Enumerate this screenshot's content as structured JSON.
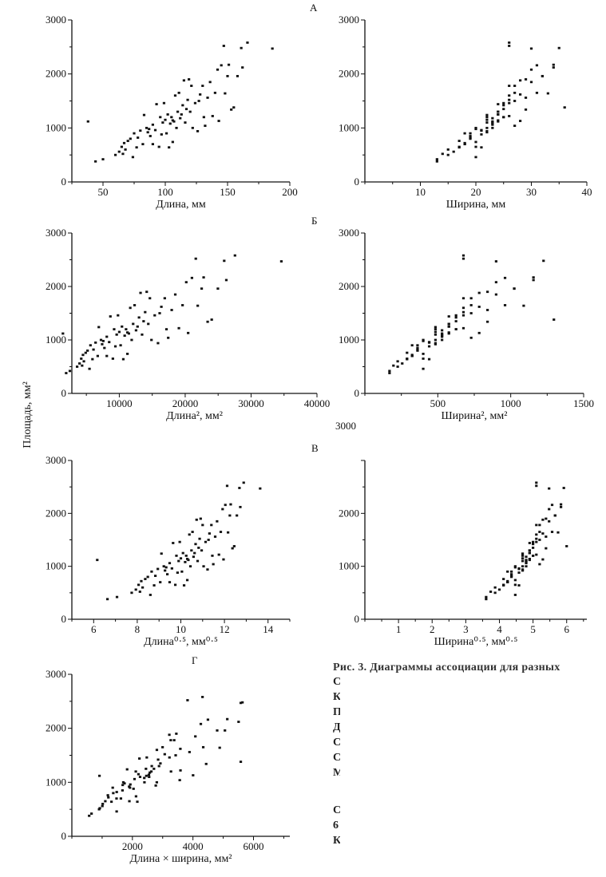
{
  "figure": {
    "ylabel": "Площадь, мм²",
    "caption_first_line": "Рис. 3. Диаграммы ассоциации для разных",
    "caption_fragments": [
      "С",
      "К",
      "П",
      "Д",
      "С",
      "С",
      "М",
      "С",
      "6",
      "К"
    ]
  },
  "specimens_columns": [
    "length_mm",
    "width_mm",
    "area_mm2"
  ],
  "specimens": [
    [
      44,
      13,
      380
    ],
    [
      50,
      13,
      420
    ],
    [
      38,
      24,
      1120
    ],
    [
      60,
      15,
      500
    ],
    [
      63,
      16,
      560
    ],
    [
      65,
      17,
      650
    ],
    [
      67,
      18,
      720
    ],
    [
      68,
      15,
      600
    ],
    [
      70,
      17,
      760
    ],
    [
      72,
      19,
      800
    ],
    [
      74,
      20,
      460
    ],
    [
      75,
      18,
      900
    ],
    [
      78,
      19,
      820
    ],
    [
      80,
      21,
      950
    ],
    [
      82,
      18,
      700
    ],
    [
      83,
      22,
      1240
    ],
    [
      85,
      20,
      1000
    ],
    [
      86,
      22,
      920
    ],
    [
      88,
      19,
      850
    ],
    [
      90,
      23,
      1060
    ],
    [
      90,
      18,
      700
    ],
    [
      92,
      21,
      960
    ],
    [
      93,
      24,
      1440
    ],
    [
      95,
      20,
      650
    ],
    [
      96,
      22,
      1200
    ],
    [
      98,
      23,
      1100
    ],
    [
      99,
      25,
      1460
    ],
    [
      100,
      22,
      1150
    ],
    [
      101,
      19,
      900
    ],
    [
      102,
      24,
      1250
    ],
    [
      103,
      21,
      640
    ],
    [
      104,
      23,
      1080
    ],
    [
      105,
      25,
      1200
    ],
    [
      106,
      20,
      740
    ],
    [
      106,
      24,
      1140
    ],
    [
      108,
      26,
      1600
    ],
    [
      109,
      22,
      1000
    ],
    [
      110,
      24,
      1300
    ],
    [
      111,
      27,
      1650
    ],
    [
      112,
      23,
      1180
    ],
    [
      114,
      25,
      1420
    ],
    [
      115,
      28,
      1880
    ],
    [
      116,
      22,
      1100
    ],
    [
      118,
      26,
      1520
    ],
    [
      119,
      29,
      1900
    ],
    [
      120,
      24,
      1300
    ],
    [
      121,
      27,
      1780
    ],
    [
      122,
      23,
      1000
    ],
    [
      124,
      26,
      1460
    ],
    [
      126,
      22,
      940
    ],
    [
      128,
      28,
      1620
    ],
    [
      130,
      26,
      1780
    ],
    [
      131,
      25,
      1200
    ],
    [
      132,
      27,
      1040
    ],
    [
      134,
      29,
      1560
    ],
    [
      136,
      30,
      1850
    ],
    [
      138,
      26,
      1220
    ],
    [
      140,
      31,
      1650
    ],
    [
      142,
      30,
      2080
    ],
    [
      143,
      28,
      1130
    ],
    [
      145,
      31,
      2160
    ],
    [
      147,
      26,
      2520
    ],
    [
      148,
      33,
      1640
    ],
    [
      150,
      32,
      1960
    ],
    [
      151,
      34,
      2170
    ],
    [
      153,
      29,
      1340
    ],
    [
      155,
      36,
      1380
    ],
    [
      158,
      32,
      1960
    ],
    [
      161,
      35,
      2480
    ],
    [
      162,
      34,
      2120
    ],
    [
      166,
      26,
      2580
    ],
    [
      186,
      30,
      2470
    ],
    [
      66,
      14,
      520
    ],
    [
      77,
      17,
      640
    ],
    [
      87,
      20,
      980
    ],
    [
      97,
      21,
      880
    ],
    [
      107,
      23,
      1120
    ],
    [
      113,
      24,
      1250
    ],
    [
      117,
      25,
      1350
    ],
    [
      127,
      27,
      1500
    ]
  ],
  "chart_data": [
    {
      "type": "scatter",
      "panel_letter": "А",
      "xlabel": "Длина, мм",
      "x_expression": "length",
      "xlim": [
        25,
        200
      ],
      "ylim": [
        0,
        3000
      ],
      "xticks": [
        50,
        100,
        150,
        200
      ],
      "yticks": [
        0,
        1000,
        2000,
        3000
      ],
      "grid": false
    },
    {
      "type": "scatter",
      "panel_letter": "",
      "xlabel": "Ширина, мм",
      "x_expression": "width",
      "xlim": [
        0,
        40
      ],
      "ylim": [
        0,
        3000
      ],
      "xticks": [
        10,
        20,
        30,
        40
      ],
      "yticks": [
        0,
        1000,
        2000,
        3000
      ],
      "grid": false
    },
    {
      "type": "scatter",
      "panel_letter": "Б",
      "xlabel": "Длина², мм²",
      "x_expression": "length^2",
      "xlim": [
        2800,
        40000
      ],
      "ylim": [
        0,
        3000
      ],
      "xticks": [
        10000,
        20000,
        30000,
        40000
      ],
      "yticks": [
        0,
        1000,
        2000,
        3000
      ],
      "grid": false
    },
    {
      "type": "scatter",
      "panel_letter": "",
      "xlabel": "Ширина², мм²",
      "x_expression": "width^2",
      "xlim": [
        0,
        1500
      ],
      "ylim": [
        0,
        3000
      ],
      "xticks": [
        500,
        1000,
        1500
      ],
      "yticks": [
        0,
        1000,
        2000,
        3000
      ],
      "grid": false
    },
    {
      "type": "scatter",
      "panel_letter": "В",
      "xlabel": "Длина⁰·⁵, мм⁰·⁵",
      "x_expression": "length^0.5",
      "xlim": [
        5,
        15
      ],
      "ylim": [
        0,
        3000
      ],
      "xticks": [
        6,
        8,
        10,
        12,
        14
      ],
      "yticks": [
        0,
        1000,
        2000,
        3000
      ],
      "grid": false
    },
    {
      "type": "scatter",
      "panel_letter": "",
      "xlabel": "Ширина⁰·⁵, мм⁰·⁵",
      "x_expression": "width^0.5",
      "xlim": [
        0,
        6.6
      ],
      "ylim": [
        0,
        3000
      ],
      "xticks": [
        1,
        2,
        3,
        4,
        5,
        6
      ],
      "yticks": [
        0,
        1000,
        2000
      ],
      "displaced_ytick_label": "3000",
      "grid": false
    },
    {
      "type": "scatter",
      "panel_letter": "Г",
      "xlabel": "Длина × ширина, мм²",
      "x_expression": "length*width",
      "xlim": [
        0,
        7200
      ],
      "ylim": [
        0,
        3000
      ],
      "xticks": [
        2000,
        4000,
        6000
      ],
      "yticks": [
        0,
        1000,
        2000,
        3000
      ],
      "grid": false
    }
  ]
}
